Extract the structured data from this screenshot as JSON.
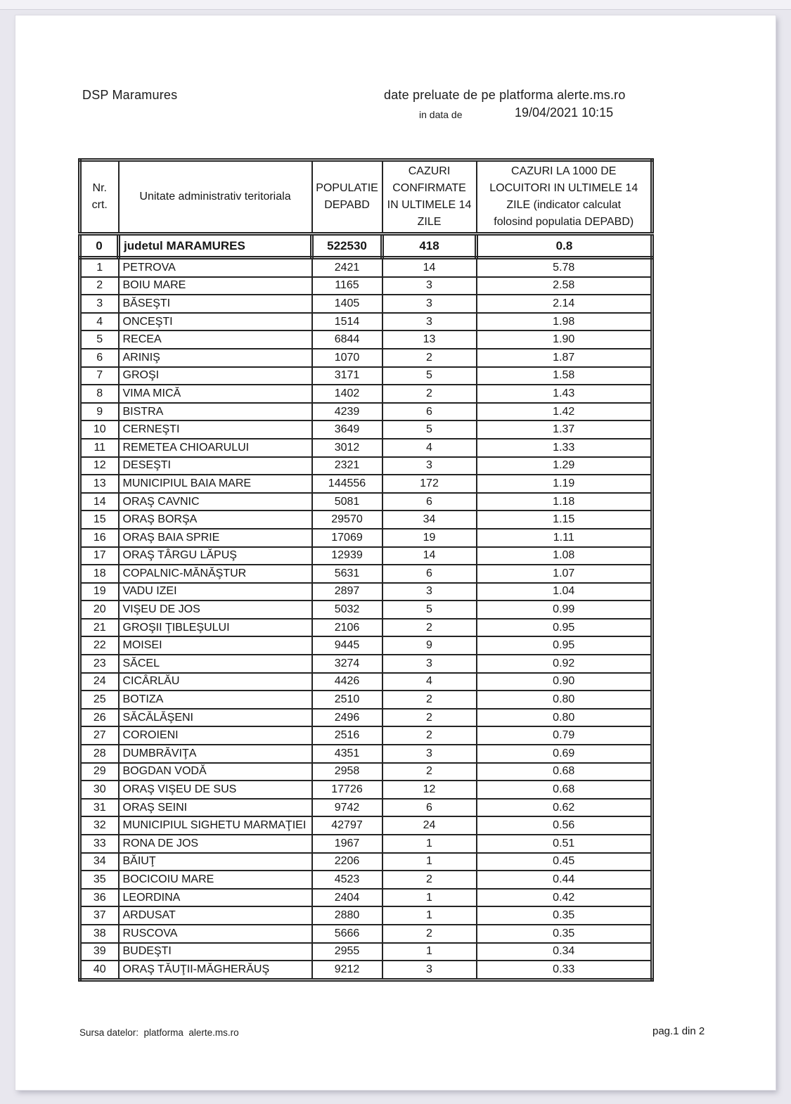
{
  "doc": {
    "org": "DSP Maramures",
    "source_line": "date preluate de pe platforma alerte.ms.ro",
    "date_label": "in data de",
    "date_value": "19/04/2021 10:15",
    "footer_source": "Sursa datelor:  platforma  alerte.ms.ro",
    "footer_page": "pag.1 din 2"
  },
  "table": {
    "columns": [
      "Nr.\ncrt.",
      "Unitate administrativ teritoriala",
      "POPULATIE\nDEPABD",
      "CAZURI\nCONFIRMATE\nIN ULTIMELE 14\nZILE",
      "CAZURI LA 1000 DE\nLOCUITORI IN ULTIMELE 14\nZILE (indicator calculat\nfolosind populatia DEPABD)"
    ],
    "total_row": [
      "0",
      "judetul MARAMURES",
      "522530",
      "418",
      "0.8"
    ],
    "rows": [
      [
        "1",
        "PETROVA",
        "2421",
        "14",
        "5.78"
      ],
      [
        "2",
        "BOIU MARE",
        "1165",
        "3",
        "2.58"
      ],
      [
        "3",
        "BĂSEŞTI",
        "1405",
        "3",
        "2.14"
      ],
      [
        "4",
        "ONCEŞTI",
        "1514",
        "3",
        "1.98"
      ],
      [
        "5",
        "RECEA",
        "6844",
        "13",
        "1.90"
      ],
      [
        "6",
        "ARINIŞ",
        "1070",
        "2",
        "1.87"
      ],
      [
        "7",
        "GROŞI",
        "3171",
        "5",
        "1.58"
      ],
      [
        "8",
        "VIMA MICĂ",
        "1402",
        "2",
        "1.43"
      ],
      [
        "9",
        "BISTRA",
        "4239",
        "6",
        "1.42"
      ],
      [
        "10",
        "CERNEŞTI",
        "3649",
        "5",
        "1.37"
      ],
      [
        "11",
        "REMETEA CHIOARULUI",
        "3012",
        "4",
        "1.33"
      ],
      [
        "12",
        "DESEŞTI",
        "2321",
        "3",
        "1.29"
      ],
      [
        "13",
        "MUNICIPIUL BAIA MARE",
        "144556",
        "172",
        "1.19"
      ],
      [
        "14",
        "ORAŞ CAVNIC",
        "5081",
        "6",
        "1.18"
      ],
      [
        "15",
        "ORAŞ BORŞA",
        "29570",
        "34",
        "1.15"
      ],
      [
        "16",
        "ORAŞ BAIA SPRIE",
        "17069",
        "19",
        "1.11"
      ],
      [
        "17",
        "ORAŞ TÂRGU LĂPUŞ",
        "12939",
        "14",
        "1.08"
      ],
      [
        "18",
        "COPALNIC-MĂNĂŞTUR",
        "5631",
        "6",
        "1.07"
      ],
      [
        "19",
        "VADU IZEI",
        "2897",
        "3",
        "1.04"
      ],
      [
        "20",
        "VIŞEU DE JOS",
        "5032",
        "5",
        "0.99"
      ],
      [
        "21",
        "GROŞII ŢIBLEŞULUI",
        "2106",
        "2",
        "0.95"
      ],
      [
        "22",
        "MOISEI",
        "9445",
        "9",
        "0.95"
      ],
      [
        "23",
        "SĂCEL",
        "3274",
        "3",
        "0.92"
      ],
      [
        "24",
        "CICÂRLĂU",
        "4426",
        "4",
        "0.90"
      ],
      [
        "25",
        "BOTIZA",
        "2510",
        "2",
        "0.80"
      ],
      [
        "26",
        "SĂCĂLĂŞENI",
        "2496",
        "2",
        "0.80"
      ],
      [
        "27",
        "COROIENI",
        "2516",
        "2",
        "0.79"
      ],
      [
        "28",
        "DUMBRĂVIŢA",
        "4351",
        "3",
        "0.69"
      ],
      [
        "29",
        "BOGDAN VODĂ",
        "2958",
        "2",
        "0.68"
      ],
      [
        "30",
        "ORAŞ VIŞEU DE SUS",
        "17726",
        "12",
        "0.68"
      ],
      [
        "31",
        "ORAŞ SEINI",
        "9742",
        "6",
        "0.62"
      ],
      [
        "32",
        "MUNICIPIUL SIGHETU MARMAŢIEI",
        "42797",
        "24",
        "0.56"
      ],
      [
        "33",
        "RONA DE JOS",
        "1967",
        "1",
        "0.51"
      ],
      [
        "34",
        "BĂIUŢ",
        "2206",
        "1",
        "0.45"
      ],
      [
        "35",
        "BOCICOIU MARE",
        "4523",
        "2",
        "0.44"
      ],
      [
        "36",
        "LEORDINA",
        "2404",
        "1",
        "0.42"
      ],
      [
        "37",
        "ARDUSAT",
        "2880",
        "1",
        "0.35"
      ],
      [
        "38",
        "RUSCOVA",
        "5666",
        "2",
        "0.35"
      ],
      [
        "39",
        "BUDEŞTI",
        "2955",
        "1",
        "0.34"
      ],
      [
        "40",
        "ORAŞ TĂUŢII-MĂGHERĂUŞ",
        "9212",
        "3",
        "0.33"
      ]
    ]
  }
}
